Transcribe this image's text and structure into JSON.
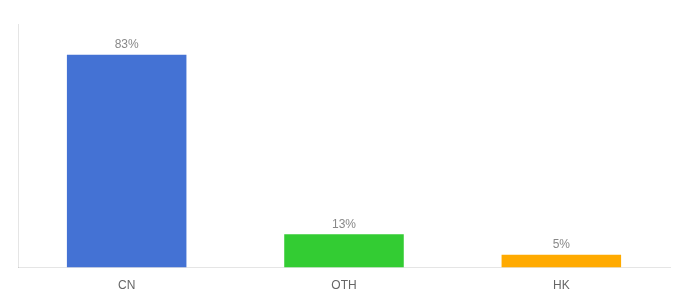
{
  "chart_data": {
    "type": "bar",
    "categories": [
      "CN",
      "OTH",
      "HK"
    ],
    "values": [
      83,
      13,
      5
    ],
    "value_labels": [
      "83%",
      "13%",
      "5%"
    ],
    "colors": [
      "#4472d4",
      "#33cc33",
      "#ffaa00"
    ],
    "ylim": [
      0,
      95
    ],
    "data_labels": true,
    "tick_labels": "x",
    "grid": false
  }
}
